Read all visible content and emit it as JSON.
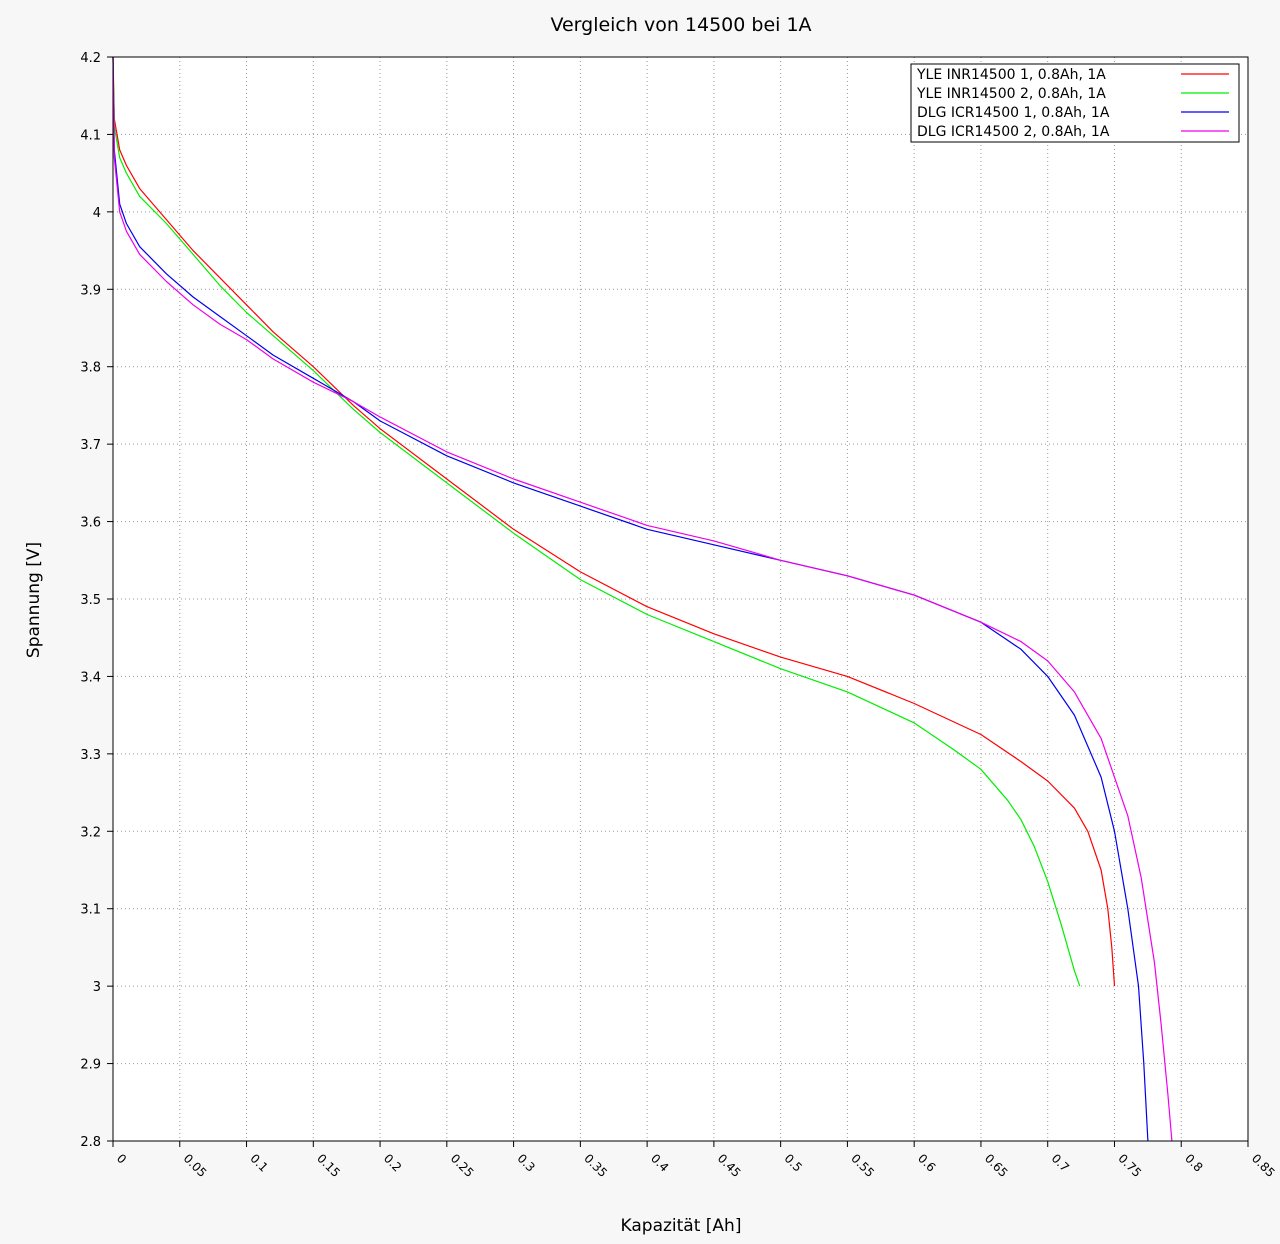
{
  "chart_data": {
    "type": "line",
    "title": "Vergleich von 14500 bei 1A",
    "xlabel": "Kapazität [Ah]",
    "ylabel": "Spannung [V]",
    "xlim": [
      0,
      0.85
    ],
    "ylim": [
      2.8,
      4.2
    ],
    "x_ticks": [
      "0",
      "0.05",
      "0.1",
      "0.15",
      "0.2",
      "0.25",
      "0.3",
      "0.35",
      "0.4",
      "0.45",
      "0.5",
      "0.55",
      "0.6",
      "0.65",
      "0.7",
      "0.75",
      "0.8",
      "0.85"
    ],
    "y_ticks": [
      "2.8",
      "2.9",
      "3",
      "3.1",
      "3.2",
      "3.3",
      "3.4",
      "3.5",
      "3.6",
      "3.7",
      "3.8",
      "3.9",
      "4",
      "4.1",
      "4.2"
    ],
    "grid": true,
    "legend_position": "top-right",
    "series": [
      {
        "name": "YLE INR14500 1, 0.8Ah, 1A",
        "color": "#ff0000",
        "points": [
          [
            0,
            4.2
          ],
          [
            0.001,
            4.12
          ],
          [
            0.005,
            4.08
          ],
          [
            0.01,
            4.06
          ],
          [
            0.02,
            4.03
          ],
          [
            0.04,
            3.99
          ],
          [
            0.06,
            3.95
          ],
          [
            0.08,
            3.915
          ],
          [
            0.1,
            3.88
          ],
          [
            0.12,
            3.845
          ],
          [
            0.15,
            3.8
          ],
          [
            0.18,
            3.75
          ],
          [
            0.2,
            3.72
          ],
          [
            0.25,
            3.655
          ],
          [
            0.3,
            3.59
          ],
          [
            0.35,
            3.535
          ],
          [
            0.4,
            3.49
          ],
          [
            0.45,
            3.455
          ],
          [
            0.5,
            3.425
          ],
          [
            0.55,
            3.4
          ],
          [
            0.6,
            3.365
          ],
          [
            0.65,
            3.325
          ],
          [
            0.68,
            3.29
          ],
          [
            0.7,
            3.265
          ],
          [
            0.72,
            3.23
          ],
          [
            0.73,
            3.2
          ],
          [
            0.74,
            3.15
          ],
          [
            0.745,
            3.1
          ],
          [
            0.748,
            3.05
          ],
          [
            0.75,
            3.0
          ]
        ]
      },
      {
        "name": "YLE INR14500 2, 0.8Ah, 1A",
        "color": "#00ee00",
        "points": [
          [
            0,
            4.2
          ],
          [
            0.001,
            4.11
          ],
          [
            0.005,
            4.07
          ],
          [
            0.01,
            4.05
          ],
          [
            0.02,
            4.02
          ],
          [
            0.04,
            3.985
          ],
          [
            0.06,
            3.945
          ],
          [
            0.08,
            3.905
          ],
          [
            0.1,
            3.87
          ],
          [
            0.12,
            3.84
          ],
          [
            0.15,
            3.795
          ],
          [
            0.18,
            3.745
          ],
          [
            0.2,
            3.715
          ],
          [
            0.25,
            3.65
          ],
          [
            0.3,
            3.585
          ],
          [
            0.35,
            3.525
          ],
          [
            0.4,
            3.48
          ],
          [
            0.45,
            3.445
          ],
          [
            0.5,
            3.41
          ],
          [
            0.55,
            3.38
          ],
          [
            0.6,
            3.34
          ],
          [
            0.63,
            3.305
          ],
          [
            0.65,
            3.28
          ],
          [
            0.67,
            3.24
          ],
          [
            0.68,
            3.215
          ],
          [
            0.69,
            3.18
          ],
          [
            0.7,
            3.135
          ],
          [
            0.71,
            3.08
          ],
          [
            0.72,
            3.02
          ],
          [
            0.724,
            3.0
          ]
        ]
      },
      {
        "name": "DLG ICR14500 1, 0.8Ah, 1A",
        "color": "#0000ee",
        "points": [
          [
            0,
            4.2
          ],
          [
            0.001,
            4.08
          ],
          [
            0.005,
            4.01
          ],
          [
            0.01,
            3.985
          ],
          [
            0.02,
            3.955
          ],
          [
            0.04,
            3.92
          ],
          [
            0.06,
            3.89
          ],
          [
            0.08,
            3.865
          ],
          [
            0.1,
            3.84
          ],
          [
            0.12,
            3.815
          ],
          [
            0.15,
            3.785
          ],
          [
            0.18,
            3.755
          ],
          [
            0.2,
            3.73
          ],
          [
            0.25,
            3.685
          ],
          [
            0.3,
            3.65
          ],
          [
            0.35,
            3.62
          ],
          [
            0.4,
            3.59
          ],
          [
            0.45,
            3.57
          ],
          [
            0.5,
            3.55
          ],
          [
            0.55,
            3.53
          ],
          [
            0.6,
            3.505
          ],
          [
            0.65,
            3.47
          ],
          [
            0.68,
            3.435
          ],
          [
            0.7,
            3.4
          ],
          [
            0.72,
            3.35
          ],
          [
            0.74,
            3.27
          ],
          [
            0.75,
            3.2
          ],
          [
            0.76,
            3.1
          ],
          [
            0.768,
            3.0
          ],
          [
            0.772,
            2.9
          ],
          [
            0.775,
            2.8
          ]
        ]
      },
      {
        "name": "DLG ICR14500 2, 0.8Ah, 1A",
        "color": "#ee00ee",
        "points": [
          [
            0,
            4.2
          ],
          [
            0.001,
            4.07
          ],
          [
            0.005,
            4.0
          ],
          [
            0.01,
            3.975
          ],
          [
            0.02,
            3.945
          ],
          [
            0.04,
            3.91
          ],
          [
            0.06,
            3.88
          ],
          [
            0.08,
            3.855
          ],
          [
            0.1,
            3.835
          ],
          [
            0.12,
            3.81
          ],
          [
            0.15,
            3.78
          ],
          [
            0.18,
            3.755
          ],
          [
            0.2,
            3.735
          ],
          [
            0.25,
            3.69
          ],
          [
            0.3,
            3.655
          ],
          [
            0.35,
            3.625
          ],
          [
            0.4,
            3.595
          ],
          [
            0.45,
            3.575
          ],
          [
            0.5,
            3.55
          ],
          [
            0.55,
            3.53
          ],
          [
            0.6,
            3.505
          ],
          [
            0.65,
            3.47
          ],
          [
            0.68,
            3.445
          ],
          [
            0.7,
            3.42
          ],
          [
            0.72,
            3.38
          ],
          [
            0.74,
            3.32
          ],
          [
            0.76,
            3.22
          ],
          [
            0.77,
            3.14
          ],
          [
            0.78,
            3.03
          ],
          [
            0.785,
            2.95
          ],
          [
            0.79,
            2.86
          ],
          [
            0.793,
            2.8
          ]
        ]
      }
    ]
  }
}
